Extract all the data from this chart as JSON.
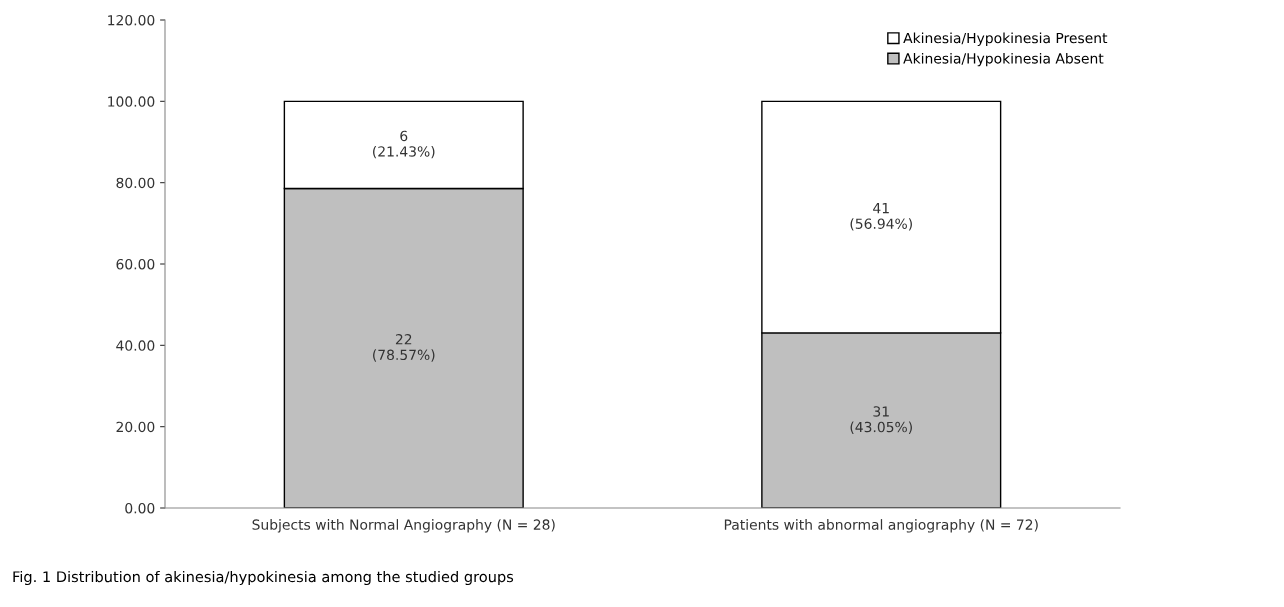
{
  "chart_data": {
    "type": "bar",
    "stacked": true,
    "categories": [
      "Subjects with Normal Angiography (N = 28)",
      "Patients with abnormal angiography (N = 72)"
    ],
    "series": [
      {
        "name": "Akinesia/Hypokinesia Absent",
        "color": "#bfbfbf",
        "values": [
          78.57,
          43.05
        ],
        "value_labels": [
          "22\n(78.57%)",
          "31\n(43.05%)"
        ]
      },
      {
        "name": "Akinesia/Hypokinesia Present",
        "color": "#ffffff",
        "values": [
          21.43,
          56.94
        ],
        "value_labels": [
          "6\n(21.43%)",
          "41\n(56.94%)"
        ]
      }
    ],
    "ylim": [
      0,
      120
    ],
    "yticks": [
      {
        "value": 0,
        "label": "0.00"
      },
      {
        "value": 20,
        "label": "20.00"
      },
      {
        "value": 40,
        "label": "40.00"
      },
      {
        "value": 60,
        "label": "60.00"
      },
      {
        "value": 80,
        "label": "80.00"
      },
      {
        "value": 100,
        "label": "100.00"
      },
      {
        "value": 120,
        "label": "120.00"
      }
    ],
    "grid": false,
    "legend": "top right",
    "annotations": [
      "Fig. 1 Distribution of akinesia/hypokinesia among the studied groups"
    ]
  }
}
